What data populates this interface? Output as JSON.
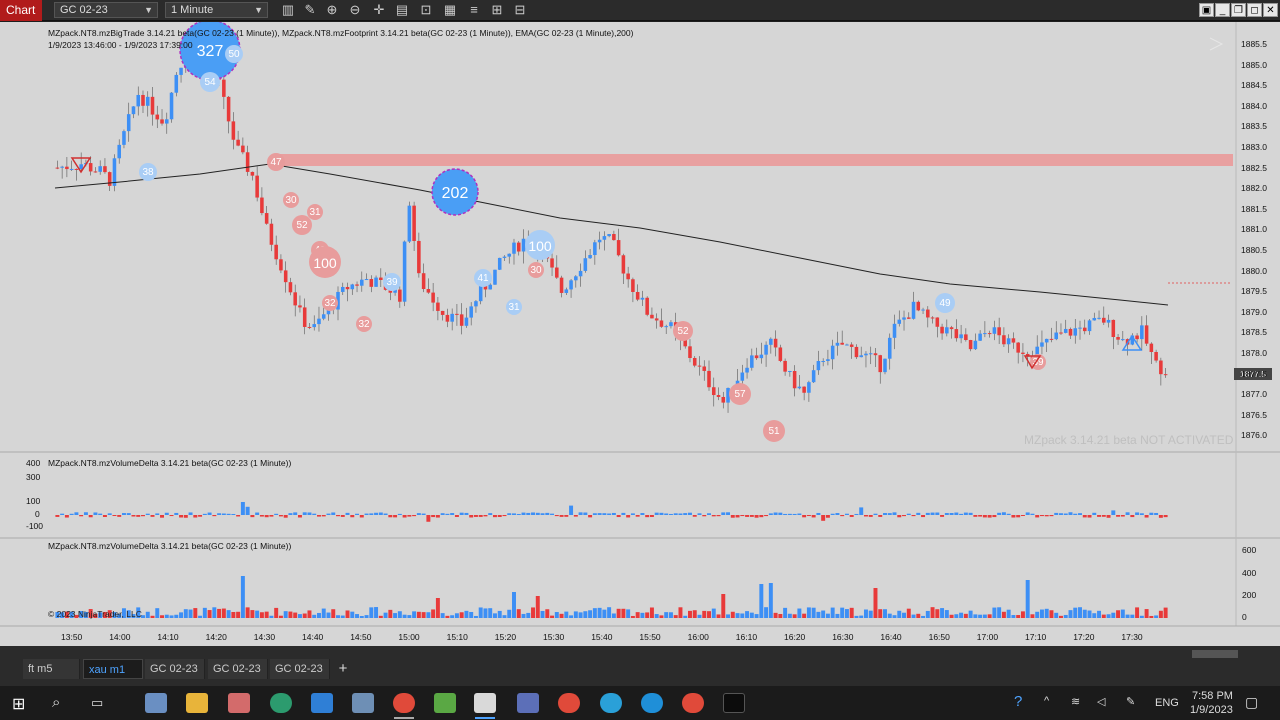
{
  "toolbar": {
    "chart_tab": "Chart",
    "instrument": "GC 02-23",
    "interval": "1 Minute"
  },
  "chart": {
    "indicator_line1": "MZpack.NT8.mzBigTrade 3.14.21 beta(GC 02-23 (1 Minute)), MZpack.NT8.mzFootprint 3.14.21 beta(GC 02-23 (1 Minute)), EMA(GC 02-23 (1 Minute),200)",
    "indicator_line2": "1/9/2023 13:46:00 - 1/9/2023 17:39:00",
    "volume_delta_label1": "MZpack.NT8.mzVolumeDelta 3.14.21 beta(GC 02-23 (1 Minute))",
    "volume_delta_label2": "MZpack.NT8.mzVolumeDelta 3.14.21 beta(GC 02-23 (1 Minute))",
    "copyright": "© 2023 NinjaTrader, LLC",
    "watermark": "MZpack 3.14.21 beta NOT ACTIVATED",
    "current_price": "1877.5",
    "price_axis": [
      "1885.5",
      "1885.0",
      "1884.5",
      "1884.0",
      "1883.5",
      "1883.0",
      "1882.5",
      "1882.0",
      "1881.5",
      "1881.0",
      "1880.5",
      "1880.0",
      "1879.5",
      "1879.0",
      "1878.5",
      "1878.0",
      "1877.5",
      "1877.0",
      "1876.5",
      "1876.0"
    ],
    "delta_axis": [
      "400",
      "300",
      "100",
      "0",
      "-100"
    ],
    "volume_axis": [
      "600",
      "400",
      "200",
      "0"
    ],
    "time_axis": [
      "13:50",
      "14:00",
      "14:10",
      "14:20",
      "14:30",
      "14:40",
      "14:50",
      "15:00",
      "15:10",
      "15:20",
      "15:30",
      "15:40",
      "15:50",
      "16:00",
      "16:10",
      "16:20",
      "16:30",
      "16:40",
      "16:50",
      "17:00",
      "17:10",
      "17:20",
      "17:30"
    ],
    "big_trades": [
      {
        "label": "327",
        "side": "buy"
      },
      {
        "label": "50",
        "side": "buy"
      },
      {
        "label": "54",
        "side": "buy"
      },
      {
        "label": "38",
        "side": "buy"
      },
      {
        "label": "47",
        "side": "sell"
      },
      {
        "label": "30",
        "side": "sell"
      },
      {
        "label": "31",
        "side": "sell"
      },
      {
        "label": "52",
        "side": "sell"
      },
      {
        "label": "48",
        "side": "sell"
      },
      {
        "label": "100",
        "side": "sell"
      },
      {
        "label": "32",
        "side": "sell"
      },
      {
        "label": "32",
        "side": "sell"
      },
      {
        "label": "39",
        "side": "buy"
      },
      {
        "label": "202",
        "side": "buy"
      },
      {
        "label": "41",
        "side": "buy"
      },
      {
        "label": "31",
        "side": "buy"
      },
      {
        "label": "100",
        "side": "buy"
      },
      {
        "label": "30",
        "side": "sell"
      },
      {
        "label": "52",
        "side": "sell"
      },
      {
        "label": "57",
        "side": "sell"
      },
      {
        "label": "51",
        "side": "sell"
      },
      {
        "label": "49",
        "side": "buy"
      },
      {
        "label": "39",
        "side": "sell"
      }
    ],
    "colors": {
      "background": "#d6d6d6",
      "up": "#3d8ff5",
      "down": "#e83a3a",
      "zone": "#e8a0a0",
      "ema": "#222222"
    }
  },
  "tabs": [
    {
      "label": "ft m5"
    },
    {
      "label": "xau m1"
    },
    {
      "label": "GC 02-23"
    },
    {
      "label": "GC 02-23"
    },
    {
      "label": "GC 02-23"
    }
  ],
  "tray": {
    "language": "ENG",
    "time": "7:58 PM",
    "date": "1/9/2023"
  }
}
